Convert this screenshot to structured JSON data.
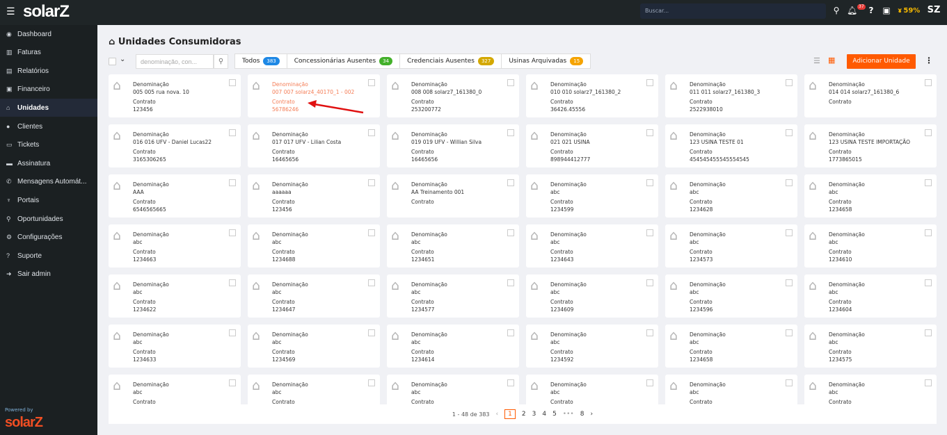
{
  "header": {
    "logo": "solarZ",
    "search_placeholder": "Buscar...",
    "notifications": "37",
    "progress": "59%"
  },
  "sidebar": {
    "items": [
      {
        "label": "Dashboard",
        "icon": "dashboard-icon",
        "glyph": "◉"
      },
      {
        "label": "Faturas",
        "icon": "barcode-icon",
        "glyph": "▥"
      },
      {
        "label": "Relatórios",
        "icon": "file-icon",
        "glyph": "▤"
      },
      {
        "label": "Financeiro",
        "icon": "money-icon",
        "glyph": "▣"
      },
      {
        "label": "Unidades",
        "icon": "home-icon",
        "glyph": "⌂",
        "active": true
      },
      {
        "label": "Clientes",
        "icon": "user-icon",
        "glyph": "●"
      },
      {
        "label": "Tickets",
        "icon": "ticket-icon",
        "glyph": "▭"
      },
      {
        "label": "Assinatura",
        "icon": "credit-card-icon",
        "glyph": "▬"
      },
      {
        "label": "Mensagens Automát...",
        "icon": "whatsapp-icon",
        "glyph": "✆"
      },
      {
        "label": "Portais",
        "icon": "plug-icon",
        "glyph": "♆"
      },
      {
        "label": "Oportunidades",
        "icon": "search-dollar-icon",
        "glyph": "⚲"
      },
      {
        "label": "Configurações",
        "icon": "gear-icon",
        "glyph": "⚙"
      },
      {
        "label": "Suporte",
        "icon": "question-icon",
        "glyph": "?"
      },
      {
        "label": "Sair admin",
        "icon": "sign-out-icon",
        "glyph": "➜"
      }
    ],
    "powered_by": "Powered by",
    "footer_logo": "solarZ"
  },
  "page": {
    "title": "Unidades Consumidoras",
    "search_placeholder": "denominação, con...",
    "add_button": "Adicionar Unidade"
  },
  "tabs": [
    {
      "label": "Todos",
      "count": "383",
      "color": "#1e88e5"
    },
    {
      "label": "Concessionárias Ausentes",
      "count": "34",
      "color": "#43b02a"
    },
    {
      "label": "Credenciais Ausentes",
      "count": "327",
      "color": "#d4a800"
    },
    {
      "label": "Usinas Arquivadas",
      "count": "15",
      "color": "#f5a300"
    }
  ],
  "card_labels": {
    "name": "Denominação",
    "contract": "Contrato"
  },
  "units": [
    {
      "name": "005 005 rua nova. 10",
      "contract": "123456"
    },
    {
      "name": "007 007 solarz4_40170_1 - 002",
      "contract": "56786246",
      "highlighted": true
    },
    {
      "name": "008 008 solarz7_161380_0",
      "contract": "253200772"
    },
    {
      "name": "010 010 solarz7_161380_2",
      "contract": "36426.45556"
    },
    {
      "name": "011 011 solarz7_161380_3",
      "contract": "2522938010"
    },
    {
      "name": "014 014 solarz7_161380_6",
      "contract": ""
    },
    {
      "name": "016 016 UFV - Daniel Lucas22",
      "contract": "3165306265"
    },
    {
      "name": "017 017 UFV - Lilian Costa",
      "contract": "16465656"
    },
    {
      "name": "019 019 UFV - Willian Silva",
      "contract": "16465656"
    },
    {
      "name": "021 021 USINA",
      "contract": "898944412777"
    },
    {
      "name": "123 USINA TESTE 01",
      "contract": "454545455545554545"
    },
    {
      "name": "123 USINA TESTE IMPORTAÇÃO",
      "contract": "1773865015"
    },
    {
      "name": "AAA",
      "contract": "6546565665"
    },
    {
      "name": "aaaaaa",
      "contract": "123456"
    },
    {
      "name": "AA Treinamento 001",
      "contract": ""
    },
    {
      "name": "abc",
      "contract": "1234599"
    },
    {
      "name": "abc",
      "contract": "1234628"
    },
    {
      "name": "abc",
      "contract": "1234658"
    },
    {
      "name": "abc",
      "contract": "1234663"
    },
    {
      "name": "abc",
      "contract": "1234688"
    },
    {
      "name": "abc",
      "contract": "1234651"
    },
    {
      "name": "abc",
      "contract": "1234643"
    },
    {
      "name": "abc",
      "contract": "1234573"
    },
    {
      "name": "abc",
      "contract": "1234610"
    },
    {
      "name": "abc",
      "contract": "1234622"
    },
    {
      "name": "abc",
      "contract": "1234647"
    },
    {
      "name": "abc",
      "contract": "1234577"
    },
    {
      "name": "abc",
      "contract": "1234609"
    },
    {
      "name": "abc",
      "contract": "1234596"
    },
    {
      "name": "abc",
      "contract": "1234604"
    },
    {
      "name": "abc",
      "contract": "1234633"
    },
    {
      "name": "abc",
      "contract": "1234569"
    },
    {
      "name": "abc",
      "contract": "1234614"
    },
    {
      "name": "abc",
      "contract": "1234592"
    },
    {
      "name": "abc",
      "contract": "1234658"
    },
    {
      "name": "abc",
      "contract": "1234575"
    },
    {
      "name": "abc",
      "contract": ""
    },
    {
      "name": "abc",
      "contract": ""
    },
    {
      "name": "abc",
      "contract": ""
    },
    {
      "name": "abc",
      "contract": ""
    },
    {
      "name": "abc",
      "contract": ""
    },
    {
      "name": "abc",
      "contract": ""
    }
  ],
  "pagination": {
    "range": "1 - 48 de 383",
    "pages": [
      "1",
      "2",
      "3",
      "4",
      "5",
      "•••",
      "8"
    ],
    "current": "1"
  },
  "colors": {
    "accent": "#ff5a00",
    "annotation_arrow": "#e01010"
  }
}
